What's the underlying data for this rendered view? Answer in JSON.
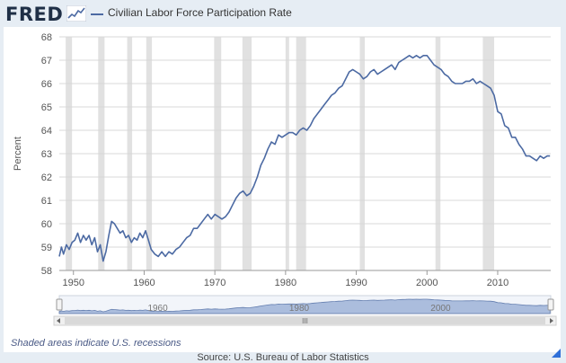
{
  "header": {
    "logo_text": "FRED",
    "logo_icon": "fred-chart-icon",
    "series_title": "Civilian Labor Force Participation Rate"
  },
  "colors": {
    "line": "#4c6aa3",
    "recession": "#e1e1e1",
    "navigator_fill": "#9fb4d8",
    "frame": "#e6edf4",
    "logo": "#1f2f46"
  },
  "chart_data": {
    "type": "line",
    "title": "Civilian Labor Force Participation Rate",
    "ylabel": "Percent",
    "xlabel": "",
    "xlim": [
      1948,
      2017.5
    ],
    "ylim": [
      58,
      68
    ],
    "x_ticks": [
      1950,
      1960,
      1970,
      1980,
      1990,
      2000,
      2010
    ],
    "y_ticks": [
      58,
      59,
      60,
      61,
      62,
      63,
      64,
      65,
      66,
      67,
      68
    ],
    "grid": true,
    "recessions": [
      [
        1948.9,
        1949.8
      ],
      [
        1953.5,
        1954.4
      ],
      [
        1957.6,
        1958.3
      ],
      [
        1960.3,
        1961.1
      ],
      [
        1969.9,
        1970.9
      ],
      [
        1973.9,
        1975.2
      ],
      [
        1980.0,
        1980.5
      ],
      [
        1981.5,
        1982.9
      ],
      [
        1990.5,
        1991.2
      ],
      [
        2001.2,
        2001.9
      ],
      [
        2007.9,
        2009.5
      ]
    ],
    "series": [
      {
        "x": [
          1948.0,
          1948.3,
          1948.6,
          1949.0,
          1949.4,
          1949.8,
          1950.2,
          1950.6,
          1951.0,
          1951.4,
          1951.8,
          1952.2,
          1952.6,
          1953.0,
          1953.4,
          1953.8,
          1954.2,
          1954.6,
          1955.0,
          1955.4,
          1955.8,
          1956.2,
          1956.6,
          1957.0,
          1957.4,
          1957.8,
          1958.2,
          1958.6,
          1959.0,
          1959.4,
          1959.8,
          1960.2,
          1960.6,
          1961.0,
          1961.5,
          1962.0,
          1962.5,
          1963.0,
          1963.5,
          1964.0,
          1964.5,
          1965.0,
          1965.5,
          1966.0,
          1966.5,
          1967.0,
          1967.5,
          1968.0,
          1968.5,
          1969.0,
          1969.5,
          1970.0,
          1970.5,
          1971.0,
          1971.5,
          1972.0,
          1972.5,
          1973.0,
          1973.5,
          1974.0,
          1974.5,
          1975.0,
          1975.5,
          1976.0,
          1976.5,
          1977.0,
          1977.5,
          1978.0,
          1978.5,
          1979.0,
          1979.5,
          1980.0,
          1980.5,
          1981.0,
          1981.5,
          1982.0,
          1982.5,
          1983.0,
          1983.5,
          1984.0,
          1984.5,
          1985.0,
          1985.5,
          1986.0,
          1986.5,
          1987.0,
          1987.5,
          1988.0,
          1988.5,
          1989.0,
          1989.5,
          1990.0,
          1990.5,
          1991.0,
          1991.5,
          1992.0,
          1992.5,
          1993.0,
          1993.5,
          1994.0,
          1994.5,
          1995.0,
          1995.5,
          1996.0,
          1996.5,
          1997.0,
          1997.5,
          1998.0,
          1998.5,
          1999.0,
          1999.5,
          2000.0,
          2000.5,
          2001.0,
          2001.5,
          2002.0,
          2002.5,
          2003.0,
          2003.5,
          2004.0,
          2004.5,
          2005.0,
          2005.5,
          2006.0,
          2006.5,
          2007.0,
          2007.5,
          2008.0,
          2008.5,
          2009.0,
          2009.5,
          2010.0,
          2010.5,
          2011.0,
          2011.5,
          2012.0,
          2012.5,
          2013.0,
          2013.5,
          2014.0,
          2014.5,
          2015.0,
          2015.5,
          2016.0,
          2016.5,
          2017.0,
          2017.4
        ],
        "values": [
          58.6,
          59.0,
          58.7,
          59.1,
          58.9,
          59.2,
          59.3,
          59.6,
          59.2,
          59.5,
          59.3,
          59.5,
          59.1,
          59.4,
          58.8,
          59.1,
          58.4,
          58.8,
          59.5,
          60.1,
          60.0,
          59.8,
          59.6,
          59.7,
          59.4,
          59.5,
          59.2,
          59.4,
          59.3,
          59.6,
          59.4,
          59.7,
          59.3,
          58.9,
          58.7,
          58.6,
          58.8,
          58.6,
          58.8,
          58.7,
          58.9,
          59.0,
          59.2,
          59.4,
          59.5,
          59.8,
          59.8,
          60.0,
          60.2,
          60.4,
          60.2,
          60.4,
          60.3,
          60.2,
          60.3,
          60.5,
          60.8,
          61.1,
          61.3,
          61.4,
          61.2,
          61.3,
          61.6,
          62.0,
          62.5,
          62.8,
          63.2,
          63.5,
          63.4,
          63.8,
          63.7,
          63.8,
          63.9,
          63.9,
          63.8,
          64.0,
          64.1,
          64.0,
          64.2,
          64.5,
          64.7,
          64.9,
          65.1,
          65.3,
          65.5,
          65.6,
          65.8,
          65.9,
          66.2,
          66.5,
          66.6,
          66.5,
          66.4,
          66.2,
          66.3,
          66.5,
          66.6,
          66.4,
          66.5,
          66.6,
          66.7,
          66.8,
          66.6,
          66.9,
          67.0,
          67.1,
          67.2,
          67.1,
          67.2,
          67.1,
          67.2,
          67.2,
          67.0,
          66.8,
          66.7,
          66.6,
          66.4,
          66.3,
          66.1,
          66.0,
          66.0,
          66.0,
          66.1,
          66.1,
          66.2,
          66.0,
          66.1,
          66.0,
          65.9,
          65.8,
          65.5,
          64.8,
          64.7,
          64.2,
          64.1,
          63.7,
          63.7,
          63.4,
          63.2,
          62.9,
          62.9,
          62.8,
          62.7,
          62.9,
          62.8,
          62.9,
          62.9
        ]
      }
    ],
    "navigator": {
      "tick_labels": [
        "1960",
        "1980",
        "2000"
      ],
      "scrollbar_glyph": "III"
    }
  },
  "footer": {
    "recession_note": "Shaded areas indicate U.S. recessions",
    "source": "Source: U.S. Bureau of Labor Statistics"
  }
}
